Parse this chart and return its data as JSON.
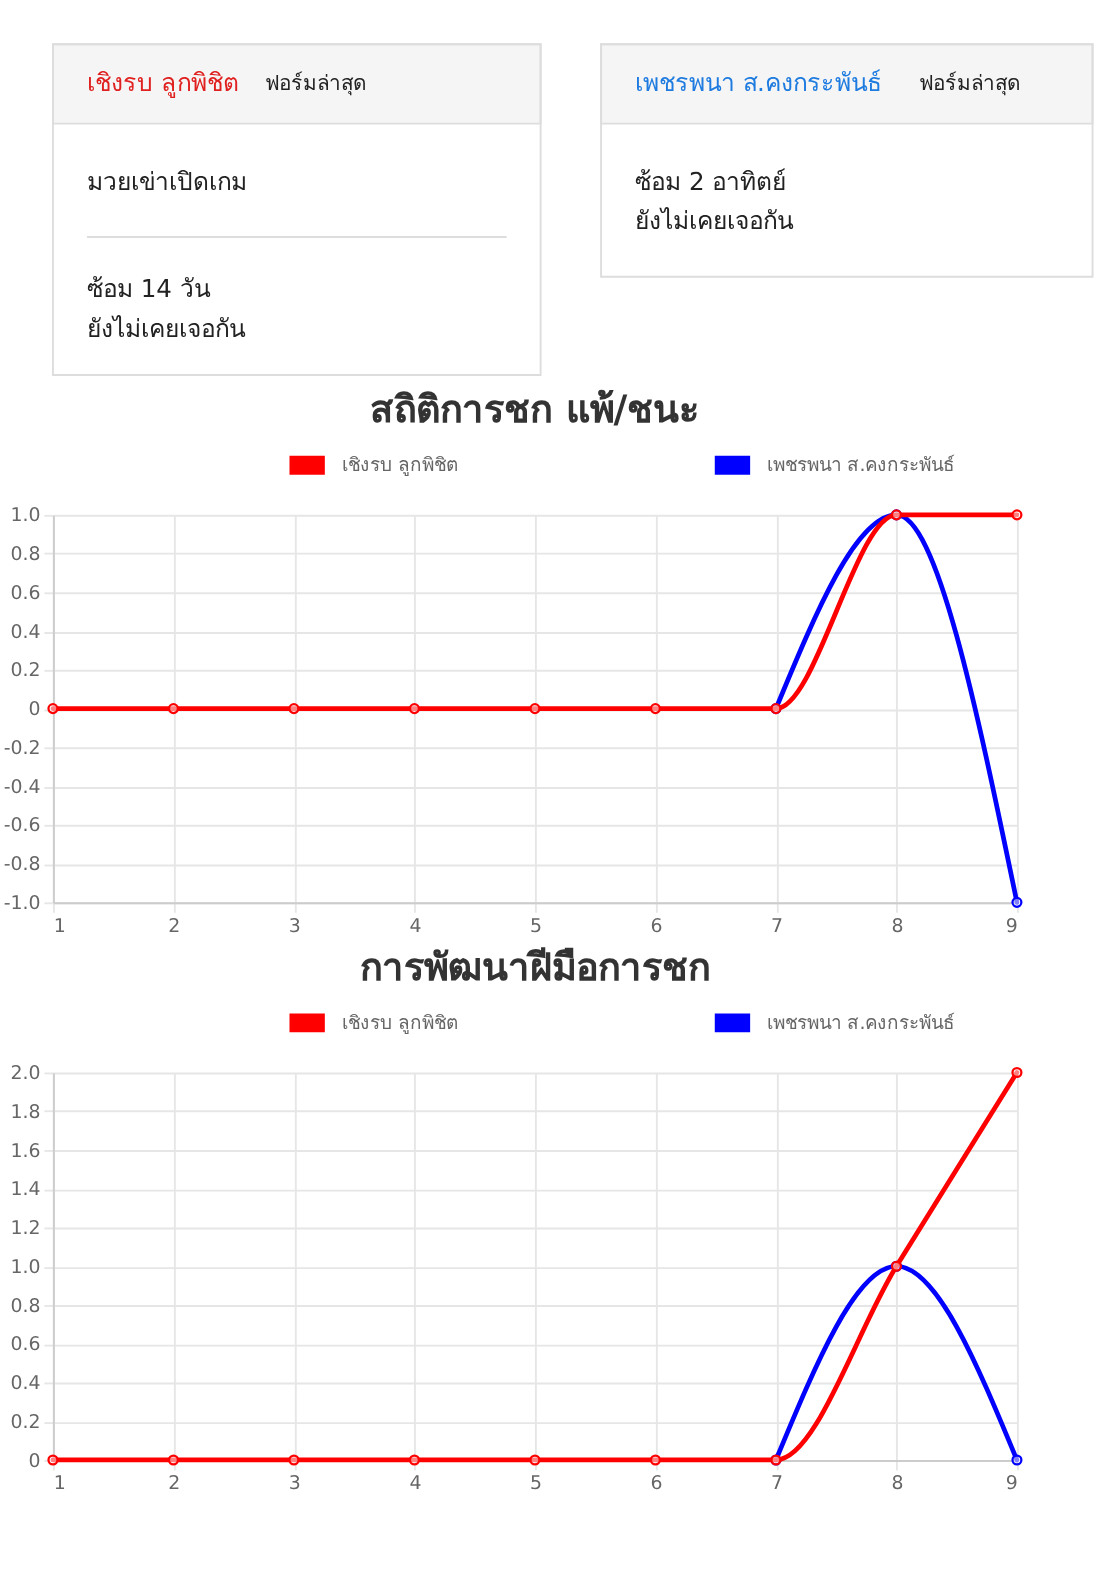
{
  "chart_data": [
    {
      "type": "other",
      "title": "เชิงรบ ลูกพิชิต",
      "subtitle": "ฟอร์มล่าสุด",
      "annotations": [
        "มวยเข่าเปิดเกม",
        "ซ้อม 14 วัน\nยังไม่เคยเจอกัน"
      ]
    },
    {
      "type": "other",
      "title": "เพชรพนา ส.คงกระพันธ์",
      "subtitle": "ฟอร์มล่าสุด",
      "annotations": [
        "ซ้อม 2 อาทิตย์\nยังไม่เคยเจอกัน"
      ]
    },
    {
      "type": "line",
      "title": "สถิติการชก แพ้/ชนะ",
      "x": [
        1,
        2,
        3,
        4,
        5,
        6,
        7,
        8,
        9
      ],
      "xlim": [
        1,
        9
      ],
      "xticks": [
        1,
        2,
        3,
        4,
        5,
        6,
        7,
        8,
        9
      ],
      "ylim": [
        -1,
        1
      ],
      "yticks": [
        {
          "value": -1,
          "label": "-1.0"
        },
        {
          "value": -0.8,
          "label": "-0.8"
        },
        {
          "value": -0.6,
          "label": "-0.6"
        },
        {
          "value": -0.4,
          "label": "-0.4"
        },
        {
          "value": -0.2,
          "label": "-0.2"
        },
        0,
        {
          "value": 0.2,
          "label": "0.2"
        },
        {
          "value": 0.4,
          "label": "0.4"
        },
        {
          "value": 0.6,
          "label": "0.6"
        },
        {
          "value": 0.8,
          "label": "0.8"
        },
        {
          "value": 1,
          "label": "1.0"
        }
      ],
      "grid": true,
      "legend": "top",
      "marker": "circle",
      "line_style": "solid",
      "series": [
        {
          "name": "เชิงรบ ลูกพิชิต",
          "color": "#ff0000",
          "values": [
            0,
            0,
            0,
            0,
            0,
            0,
            0,
            1,
            1
          ]
        },
        {
          "name": "เพชรพนา ส.คงกระพันธ์",
          "color": "#0000ff",
          "values": [
            null,
            null,
            null,
            null,
            null,
            null,
            0,
            1,
            -1
          ]
        }
      ]
    },
    {
      "type": "line",
      "title": "การพัฒนาฝีมือการชก",
      "x": [
        1,
        2,
        3,
        4,
        5,
        6,
        7,
        8,
        9
      ],
      "xlim": [
        1,
        9
      ],
      "xticks": [
        1,
        2,
        3,
        4,
        5,
        6,
        7,
        8,
        9
      ],
      "ylim": [
        0,
        2
      ],
      "yticks": [
        0,
        {
          "value": 0.2,
          "label": "0.2"
        },
        {
          "value": 0.4,
          "label": "0.4"
        },
        {
          "value": 0.6,
          "label": "0.6"
        },
        {
          "value": 0.8,
          "label": "0.8"
        },
        {
          "value": 1,
          "label": "1.0"
        },
        {
          "value": 1.2,
          "label": "1.2"
        },
        {
          "value": 1.4,
          "label": "1.4"
        },
        {
          "value": 1.6,
          "label": "1.6"
        },
        {
          "value": 1.8,
          "label": "1.8"
        },
        {
          "value": 2,
          "label": "2.0"
        }
      ],
      "grid": true,
      "legend": "top",
      "marker": "circle",
      "line_style": "solid",
      "series": [
        {
          "name": "เชิงรบ ลูกพิชิต",
          "color": "#ff0000",
          "values": [
            0,
            0,
            0,
            0,
            0,
            0,
            0,
            1,
            2
          ]
        },
        {
          "name": "เพชรพนา ส.คงกระพันธ์",
          "color": "#0000ff",
          "values": [
            null,
            null,
            null,
            null,
            null,
            null,
            0,
            1,
            0
          ]
        }
      ]
    }
  ]
}
